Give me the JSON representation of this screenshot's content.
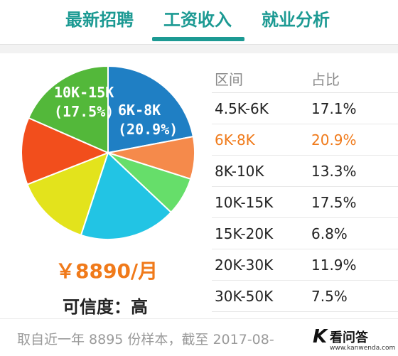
{
  "tabs": [
    "最新招聘",
    "工资收入",
    "就业分析"
  ],
  "active_tab": 1,
  "colors": {
    "accent": "#1c9a93",
    "highlight": "#f07a1a"
  },
  "salary": "￥8890/月",
  "credibility": "可信度：高",
  "table": {
    "headers": [
      "区间",
      "占比"
    ],
    "highlight_row": 1,
    "rows": [
      [
        "4.5K-6K",
        "17.1%"
      ],
      [
        "6K-8K",
        "20.9%"
      ],
      [
        "8K-10K",
        "13.3%"
      ],
      [
        "10K-15K",
        "17.5%"
      ],
      [
        "15K-20K",
        "6.8%"
      ],
      [
        "20K-30K",
        "11.9%"
      ],
      [
        "30K-50K",
        "7.5%"
      ]
    ]
  },
  "footer": {
    "text": "取自近一年 8895 份样本，截至 2017-08-",
    "logo_cn": "看问答",
    "logo_en": "www.kanwenda.com"
  },
  "chart_data": {
    "type": "pie",
    "start_angle_deg": 0,
    "slices": [
      {
        "label": "6K-8K",
        "value": 20.9,
        "color": "#1f7fc4",
        "show_label": true,
        "label_text": [
          "6K-8K",
          "(20.9%)"
        ]
      },
      {
        "label": "30K-50K",
        "value": 7.5,
        "color": "#f58a4b",
        "show_label": false
      },
      {
        "label": "15K-20K",
        "value": 6.8,
        "color": "#66de6a",
        "show_label": false
      },
      {
        "label": "4.5K-6K",
        "value": 17.1,
        "color": "#22c4e4",
        "show_label": false
      },
      {
        "label": "8K-10K",
        "value": 13.3,
        "color": "#e3e31c",
        "show_label": false
      },
      {
        "label": "20K-30K",
        "value": 11.9,
        "color": "#f24e1c",
        "show_label": false
      },
      {
        "label": "10K-15K",
        "value": 17.5,
        "color": "#53b83a",
        "show_label": true,
        "label_text": [
          "10K-15K",
          "(17.5%)"
        ]
      }
    ]
  }
}
